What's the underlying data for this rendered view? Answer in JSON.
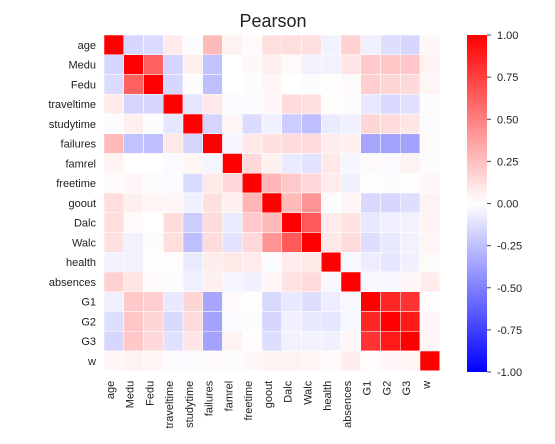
{
  "chart_data": {
    "type": "heatmap",
    "title": "Pearson",
    "variables": [
      "age",
      "Medu",
      "Fedu",
      "traveltime",
      "studytime",
      "failures",
      "famrel",
      "freetime",
      "goout",
      "Dalc",
      "Walc",
      "health",
      "absences",
      "G1",
      "G2",
      "G3",
      "w"
    ],
    "matrix": [
      [
        1.0,
        -0.16,
        -0.14,
        0.08,
        -0.01,
        0.27,
        0.05,
        0.02,
        0.13,
        0.13,
        0.12,
        -0.05,
        0.18,
        -0.06,
        -0.13,
        -0.16,
        0.03
      ],
      [
        -0.16,
        1.0,
        0.62,
        -0.17,
        0.06,
        -0.24,
        -0.0,
        0.03,
        0.06,
        0.02,
        -0.05,
        -0.05,
        0.1,
        0.21,
        0.22,
        0.22,
        0.05
      ],
      [
        -0.14,
        0.62,
        1.0,
        -0.16,
        -0.01,
        -0.25,
        -0.0,
        -0.01,
        0.04,
        0.0,
        -0.01,
        0.01,
        0.02,
        0.19,
        0.16,
        0.15,
        0.04
      ],
      [
        0.08,
        -0.17,
        -0.16,
        1.0,
        -0.1,
        0.09,
        -0.02,
        -0.02,
        0.03,
        0.14,
        0.13,
        0.01,
        -0.01,
        -0.09,
        -0.15,
        -0.12,
        -0.01
      ],
      [
        -0.01,
        0.06,
        -0.01,
        -0.1,
        1.0,
        -0.17,
        0.04,
        -0.14,
        -0.06,
        -0.2,
        -0.25,
        -0.08,
        -0.06,
        0.16,
        0.14,
        0.1,
        -0.02
      ],
      [
        0.27,
        -0.24,
        -0.25,
        0.09,
        -0.17,
        1.0,
        -0.04,
        0.09,
        0.12,
        0.14,
        0.14,
        0.07,
        0.06,
        -0.35,
        -0.36,
        -0.36,
        0.02
      ],
      [
        0.05,
        -0.0,
        -0.0,
        -0.02,
        0.04,
        -0.04,
        1.0,
        0.15,
        0.06,
        -0.08,
        -0.11,
        0.09,
        -0.04,
        0.02,
        -0.02,
        0.05,
        -0.01
      ],
      [
        0.02,
        0.03,
        -0.01,
        -0.02,
        -0.14,
        0.09,
        0.15,
        1.0,
        0.29,
        0.21,
        0.15,
        0.08,
        -0.06,
        0.01,
        -0.01,
        0.01,
        0.03
      ],
      [
        0.13,
        0.06,
        0.04,
        0.03,
        -0.06,
        0.12,
        0.06,
        0.29,
        1.0,
        0.27,
        0.42,
        -0.01,
        0.04,
        -0.15,
        -0.16,
        -0.13,
        0.05
      ],
      [
        0.13,
        0.02,
        0.0,
        0.14,
        -0.2,
        0.14,
        -0.08,
        0.21,
        0.27,
        1.0,
        0.65,
        0.08,
        0.11,
        -0.09,
        -0.06,
        -0.05,
        0.05
      ],
      [
        0.12,
        -0.05,
        -0.01,
        0.13,
        -0.25,
        0.14,
        -0.11,
        0.15,
        0.42,
        0.65,
        1.0,
        0.09,
        0.14,
        -0.13,
        -0.09,
        -0.05,
        0.04
      ],
      [
        -0.05,
        -0.05,
        0.01,
        0.01,
        -0.08,
        0.07,
        0.09,
        0.08,
        -0.01,
        0.08,
        0.09,
        1.0,
        -0.03,
        -0.07,
        -0.1,
        -0.06,
        0.02
      ],
      [
        0.18,
        0.1,
        0.02,
        -0.01,
        -0.06,
        0.06,
        -0.04,
        -0.06,
        0.04,
        0.11,
        0.14,
        -0.03,
        1.0,
        -0.03,
        -0.03,
        0.03,
        0.07
      ],
      [
        -0.06,
        0.21,
        0.19,
        -0.09,
        0.16,
        -0.35,
        0.02,
        0.01,
        -0.15,
        -0.09,
        -0.13,
        -0.07,
        -0.03,
        1.0,
        0.85,
        0.8,
        0.01
      ],
      [
        -0.13,
        0.22,
        0.16,
        -0.15,
        0.14,
        -0.36,
        -0.02,
        -0.01,
        -0.16,
        -0.06,
        -0.09,
        -0.1,
        -0.03,
        0.85,
        1.0,
        0.9,
        0.03
      ],
      [
        -0.16,
        0.22,
        0.15,
        -0.12,
        0.1,
        -0.36,
        0.05,
        0.01,
        -0.13,
        -0.05,
        -0.05,
        -0.06,
        0.03,
        0.8,
        0.9,
        1.0,
        0.04
      ],
      [
        0.03,
        0.05,
        0.04,
        -0.01,
        -0.02,
        0.02,
        -0.01,
        0.03,
        0.05,
        0.05,
        0.04,
        0.02,
        0.07,
        0.01,
        0.03,
        0.04,
        1.0
      ]
    ],
    "colorbar": {
      "min": -1.0,
      "max": 1.0,
      "ticks": [
        "1.00",
        "0.75",
        "0.50",
        "0.25",
        "0.00",
        "-0.25",
        "-0.50",
        "-0.75",
        "-1.00"
      ],
      "tick_values": [
        1.0,
        0.75,
        0.5,
        0.25,
        0.0,
        -0.25,
        -0.5,
        -0.75,
        -1.0
      ],
      "colors": {
        "negative": "#0000ff",
        "neutral": "#ffffff",
        "positive": "#ff0000"
      }
    },
    "grid": true,
    "legend": "colorbar-right"
  }
}
